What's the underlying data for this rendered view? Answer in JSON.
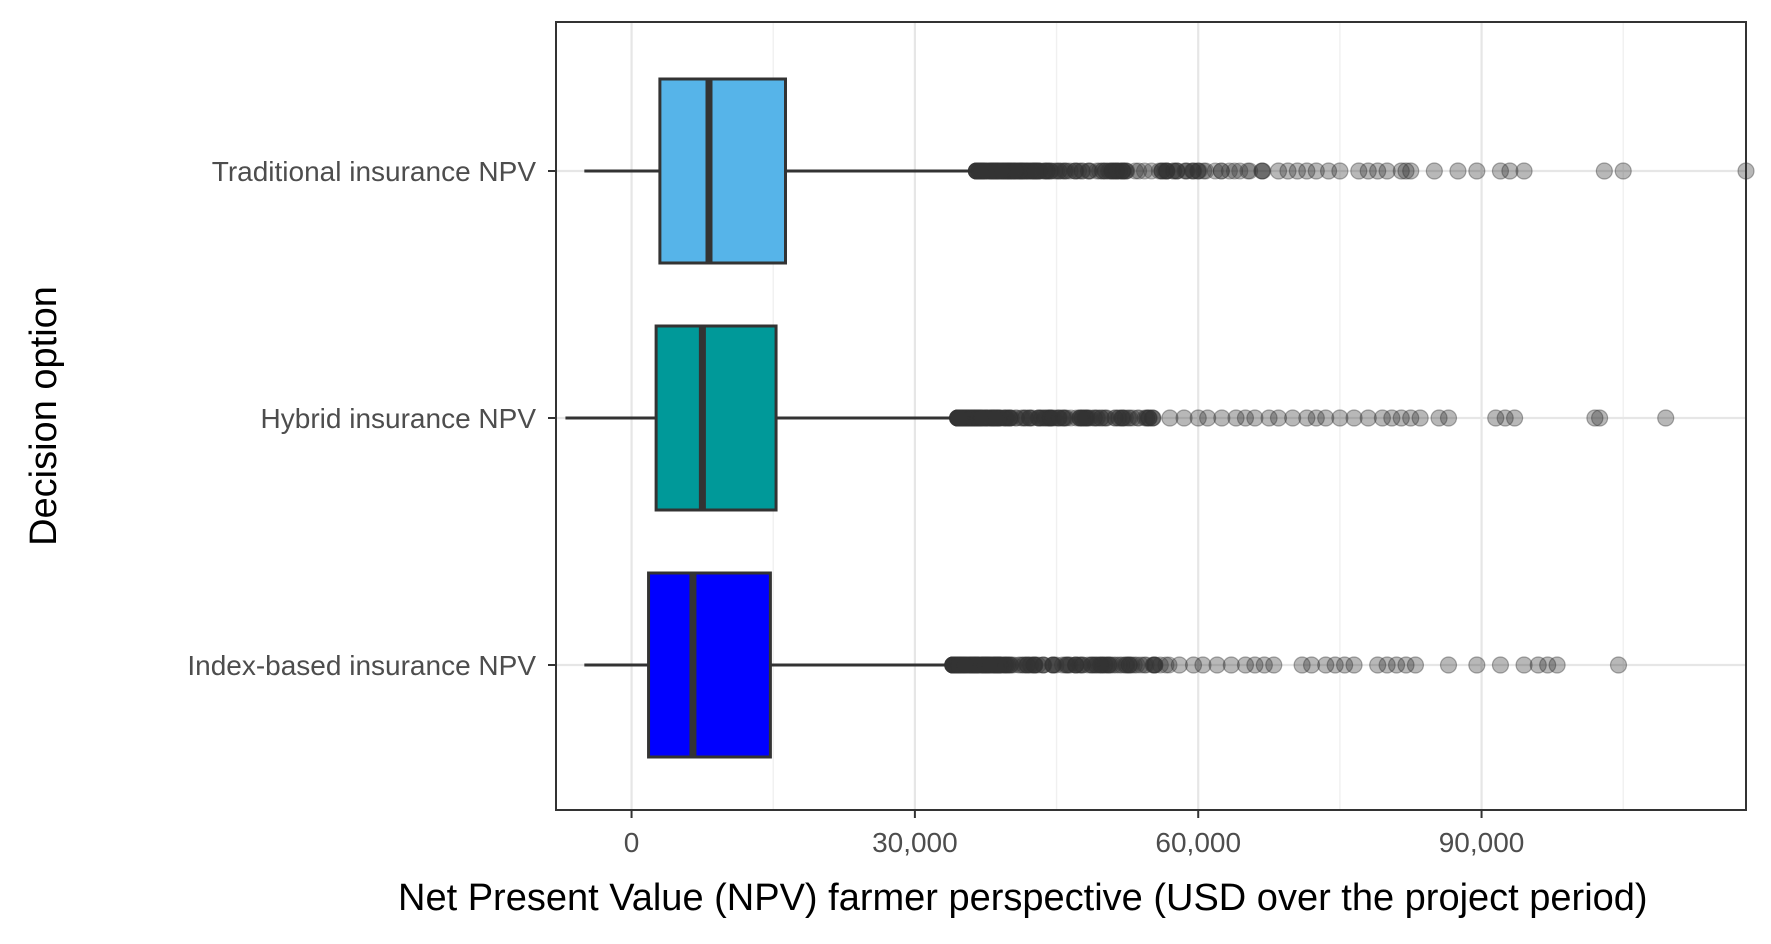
{
  "chart_data": {
    "type": "boxplot",
    "orientation": "horizontal",
    "xlabel": "Net Present Value (NPV) farmer perspective (USD over the project period)",
    "ylabel": "Decision option",
    "xlim": [
      -8000,
      118000
    ],
    "x_ticks": [
      0,
      30000,
      60000,
      90000
    ],
    "x_tick_labels": [
      "0",
      "30,000",
      "60,000",
      "90,000"
    ],
    "grid": true,
    "legend": "none",
    "categories": [
      "Traditional insurance NPV",
      "Hybrid insurance NPV",
      "Index-based insurance NPV"
    ],
    "series": [
      {
        "color": "#56B4E9",
        "whisker_low": -5000,
        "q1": 3000,
        "median": 8200,
        "q3": 16300,
        "whisker_high": 36500,
        "outlier_range": [
          36500,
          67000
        ],
        "outliers_sparse": [
          68500,
          69500,
          70500,
          71500,
          72500,
          73800,
          75000,
          77000,
          78000,
          79000,
          80000,
          81500,
          82000,
          82500,
          85000,
          87500,
          89500,
          92000,
          93000,
          94500,
          103000,
          105000,
          118000
        ]
      },
      {
        "color": "#009999",
        "whisker_low": -7000,
        "q1": 2600,
        "median": 7500,
        "q3": 15300,
        "whisker_high": 34500,
        "outlier_range": [
          34500,
          55500
        ],
        "outliers_sparse": [
          57000,
          58500,
          60000,
          61000,
          62500,
          64000,
          65000,
          66000,
          67500,
          68500,
          70000,
          71500,
          72500,
          73500,
          75000,
          76500,
          78000,
          79500,
          80500,
          81500,
          82500,
          83500,
          85500,
          86500,
          91500,
          92500,
          93500,
          102000,
          102500,
          109500
        ]
      },
      {
        "color": "#0000FF",
        "whisker_low": -5000,
        "q1": 1800,
        "median": 6500,
        "q3": 14700,
        "whisker_high": 34000,
        "outlier_range": [
          34000,
          57000
        ],
        "outliers_sparse": [
          58000,
          59500,
          60500,
          62000,
          63500,
          65000,
          66000,
          67000,
          68000,
          71000,
          72000,
          73500,
          74500,
          75500,
          76500,
          79000,
          80000,
          81000,
          82000,
          83000,
          86500,
          89500,
          92000,
          94500,
          96000,
          97000,
          98000,
          104500
        ]
      }
    ]
  }
}
